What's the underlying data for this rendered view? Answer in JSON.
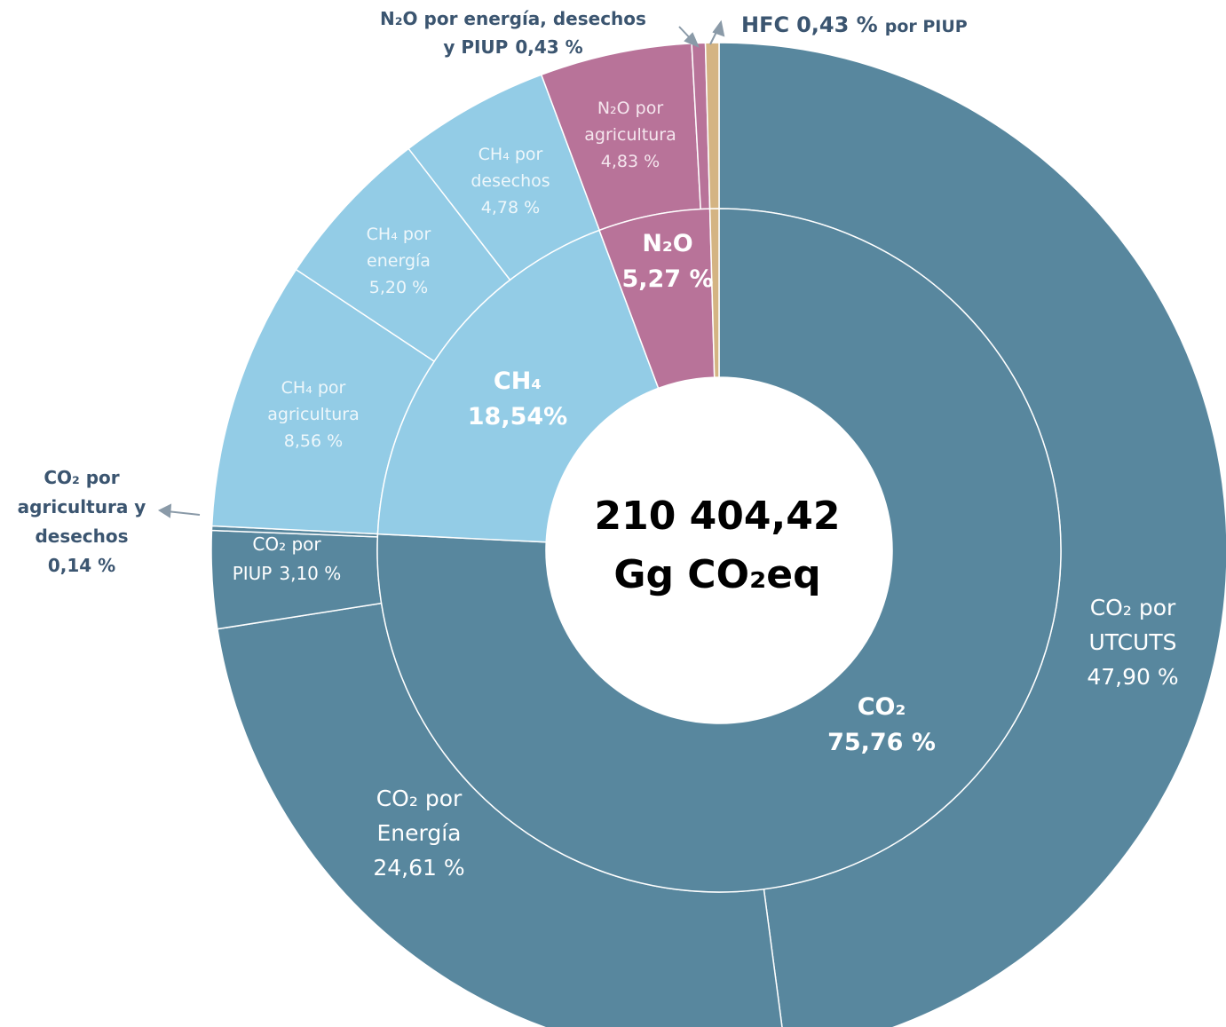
{
  "chart_data": {
    "type": "sunburst",
    "center_label": [
      "210 404,42",
      "Gg CO₂eq"
    ],
    "inner": {
      "categories": [
        "CO₂",
        "CH₄",
        "N₂O",
        null
      ],
      "values": [
        75.76,
        18.54,
        5.27,
        0.43
      ],
      "value_labels": [
        "75,76 %",
        "18,54%",
        "5,27 %",
        null
      ],
      "colors": [
        "#58879e",
        "#93cce6",
        "#b87399",
        "#d4b483"
      ]
    },
    "outer": {
      "categories": [
        [
          "CO₂ por",
          "UTCUTS"
        ],
        [
          "CO₂  por",
          "Energía"
        ],
        [
          "CO₂ por",
          "PIUP"
        ],
        [
          "CO₂ por",
          "agricultura y",
          "desechos"
        ],
        [
          "CH₄ por",
          "agricultura"
        ],
        [
          "CH₄ por",
          "energía"
        ],
        [
          "CH₄ por",
          "desechos"
        ],
        [
          "N₂O por",
          "agricultura"
        ],
        [
          "N₂O por energía, desechos",
          "y PIUP"
        ],
        [
          "HFC"
        ]
      ],
      "values": [
        47.9,
        24.61,
        3.1,
        0.14,
        8.56,
        5.2,
        4.78,
        4.83,
        0.43,
        0.43
      ],
      "value_labels": [
        "47,90 %",
        "24,61 %",
        "3,10 %",
        "0,14 %",
        "8,56 %",
        "5,20 %",
        "4,78 %",
        "4,83 %",
        "0,43 %",
        "0,43 %"
      ],
      "colors": [
        "#58879e",
        "#58879e",
        "#58879e",
        "#58879e",
        "#93cce6",
        "#93cce6",
        "#93cce6",
        "#b87399",
        "#b87399",
        "#d4b483"
      ]
    },
    "annotations": [
      "por PIUP"
    ]
  }
}
